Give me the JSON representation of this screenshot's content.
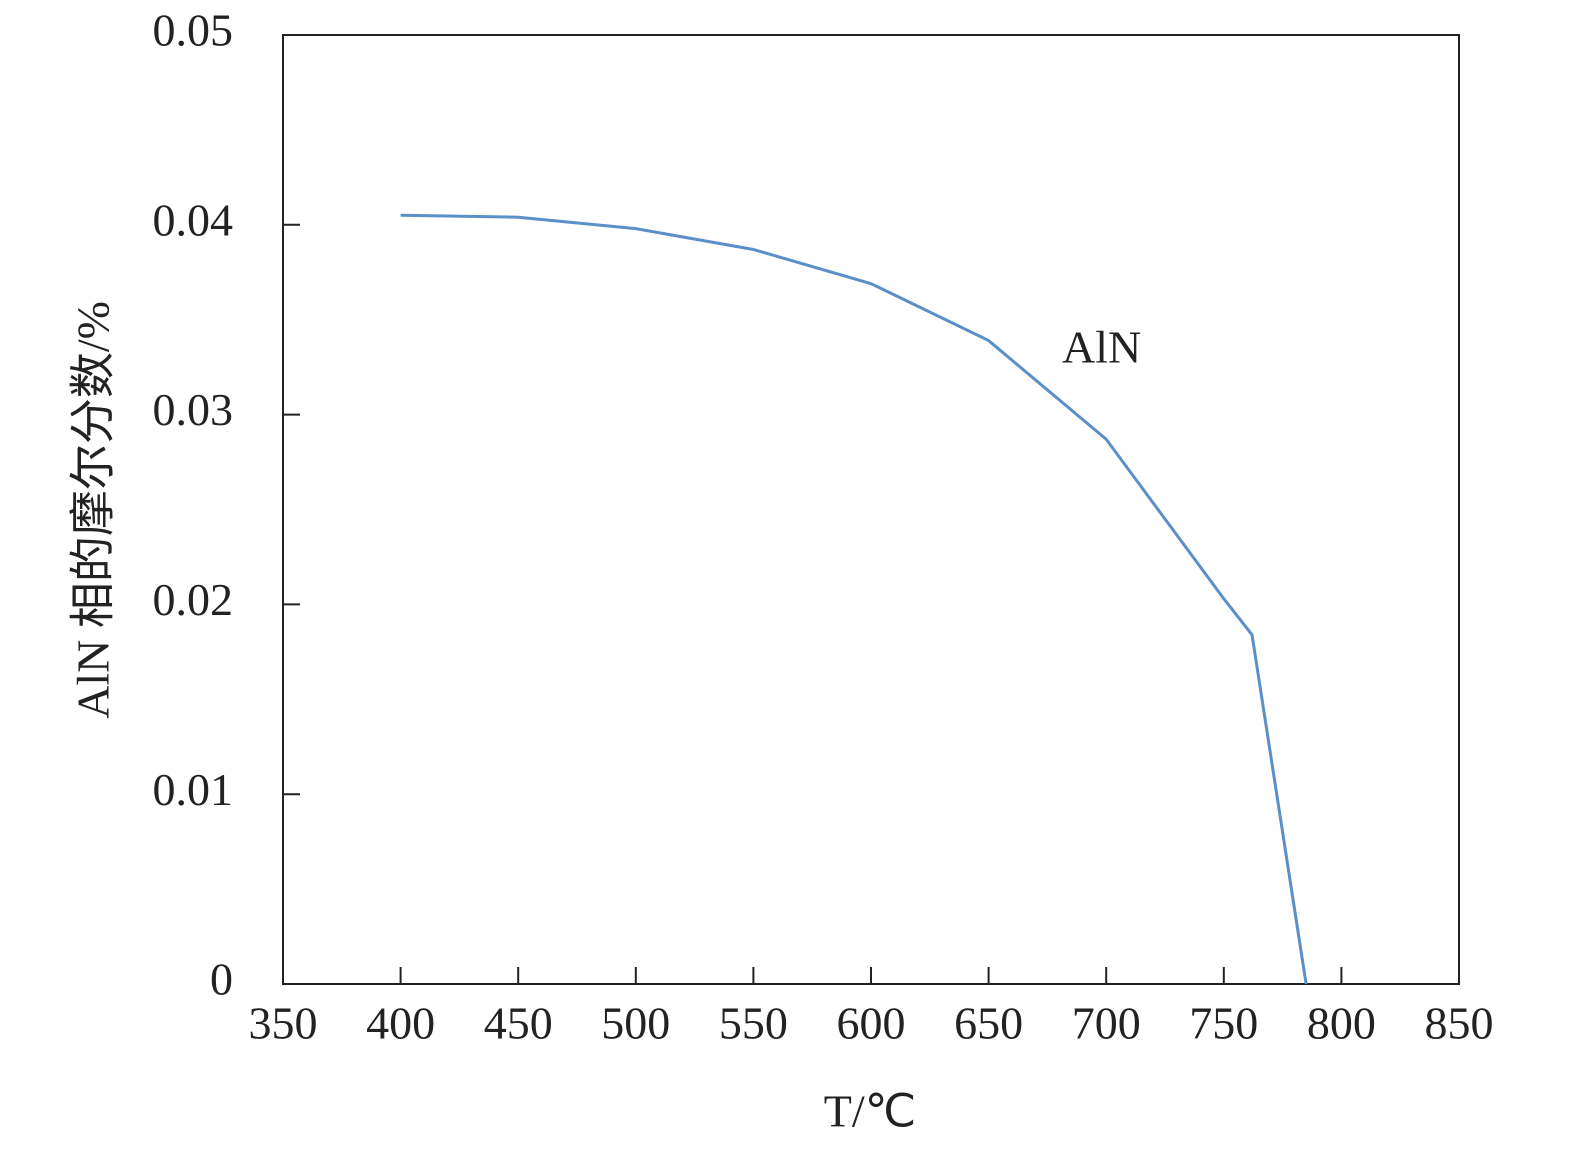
{
  "chart_data": {
    "type": "line",
    "x_label": "T/℃",
    "y_label": "AlN 相的摩尔分数/%",
    "x": [
      400,
      450,
      500,
      550,
      600,
      650,
      700,
      750,
      762,
      785
    ],
    "series": [
      {
        "name": "AlN",
        "color": "#5a8fc8",
        "values": [
          0.0405,
          0.0404,
          0.0398,
          0.0387,
          0.0369,
          0.0339,
          0.0287,
          0.0203,
          0.0184,
          0
        ]
      }
    ],
    "xlim": [
      350,
      850
    ],
    "xticks": [
      350,
      400,
      450,
      500,
      550,
      600,
      650,
      700,
      750,
      800,
      850
    ],
    "ylim": [
      0,
      0.05
    ],
    "yticks": [
      0,
      0.01,
      0.02,
      0.03,
      0.04,
      0.05
    ],
    "grid": false
  }
}
